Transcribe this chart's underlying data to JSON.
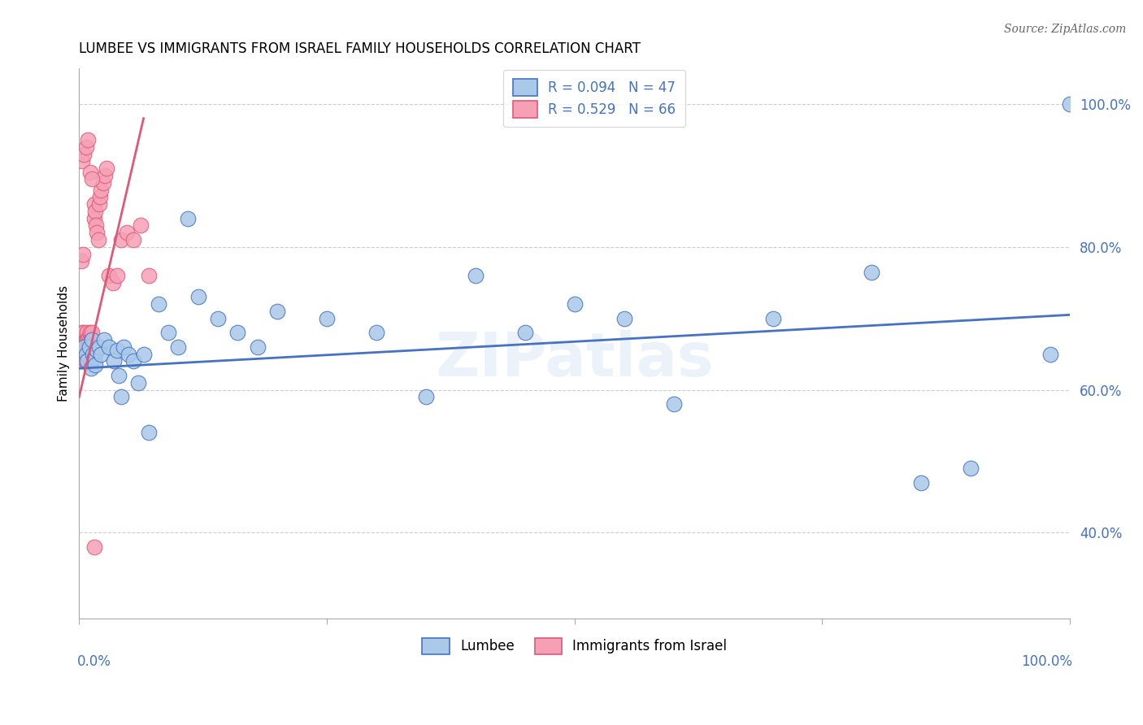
{
  "title": "LUMBEE VS IMMIGRANTS FROM ISRAEL FAMILY HOUSEHOLDS CORRELATION CHART",
  "source": "Source: ZipAtlas.com",
  "ylabel": "Family Households",
  "watermark": "ZIPatlas",
  "legend_r1": "R = 0.094",
  "legend_n1": "N = 47",
  "legend_r2": "R = 0.529",
  "legend_n2": "N = 66",
  "lumbee_color": "#aac8e8",
  "israel_color": "#f5a0b5",
  "lumbee_edge_color": "#4472c4",
  "israel_edge_color": "#e05878",
  "lumbee_line_color": "#4472c4",
  "israel_line_color": "#e05878",
  "text_color": "#4472c4",
  "lumbee_x": [
    0.005,
    0.007,
    0.008,
    0.01,
    0.012,
    0.013,
    0.014,
    0.015,
    0.016,
    0.018,
    0.02,
    0.022,
    0.025,
    0.03,
    0.035,
    0.038,
    0.04,
    0.042,
    0.045,
    0.05,
    0.055,
    0.06,
    0.065,
    0.07,
    0.08,
    0.09,
    0.1,
    0.11,
    0.12,
    0.14,
    0.16,
    0.18,
    0.2,
    0.25,
    0.3,
    0.35,
    0.4,
    0.45,
    0.5,
    0.55,
    0.6,
    0.7,
    0.8,
    0.85,
    0.9,
    0.98,
    1.0
  ],
  "lumbee_y": [
    0.66,
    0.65,
    0.64,
    0.66,
    0.63,
    0.67,
    0.65,
    0.645,
    0.635,
    0.655,
    0.66,
    0.65,
    0.67,
    0.66,
    0.64,
    0.655,
    0.62,
    0.59,
    0.66,
    0.65,
    0.64,
    0.61,
    0.65,
    0.54,
    0.72,
    0.68,
    0.66,
    0.84,
    0.73,
    0.7,
    0.68,
    0.66,
    0.71,
    0.7,
    0.68,
    0.59,
    0.76,
    0.68,
    0.72,
    0.7,
    0.58,
    0.7,
    0.765,
    0.47,
    0.49,
    0.65,
    1.0
  ],
  "israel_x": [
    0.001,
    0.001,
    0.002,
    0.002,
    0.002,
    0.003,
    0.003,
    0.003,
    0.004,
    0.004,
    0.004,
    0.005,
    0.005,
    0.005,
    0.006,
    0.006,
    0.006,
    0.007,
    0.007,
    0.007,
    0.008,
    0.008,
    0.008,
    0.008,
    0.009,
    0.009,
    0.009,
    0.01,
    0.01,
    0.01,
    0.011,
    0.011,
    0.012,
    0.012,
    0.013,
    0.013,
    0.014,
    0.015,
    0.015,
    0.016,
    0.017,
    0.018,
    0.019,
    0.02,
    0.021,
    0.022,
    0.024,
    0.026,
    0.028,
    0.03,
    0.034,
    0.038,
    0.042,
    0.048,
    0.055,
    0.062,
    0.07,
    0.003,
    0.005,
    0.007,
    0.009,
    0.011,
    0.013,
    0.002,
    0.004,
    0.015
  ],
  "israel_y": [
    0.66,
    0.645,
    0.67,
    0.65,
    0.64,
    0.655,
    0.68,
    0.66,
    0.65,
    0.67,
    0.645,
    0.68,
    0.66,
    0.65,
    0.67,
    0.65,
    0.64,
    0.67,
    0.66,
    0.65,
    0.68,
    0.67,
    0.655,
    0.64,
    0.665,
    0.67,
    0.655,
    0.67,
    0.66,
    0.65,
    0.68,
    0.66,
    0.67,
    0.65,
    0.66,
    0.68,
    0.66,
    0.84,
    0.86,
    0.85,
    0.83,
    0.82,
    0.81,
    0.86,
    0.87,
    0.88,
    0.89,
    0.9,
    0.91,
    0.76,
    0.75,
    0.76,
    0.81,
    0.82,
    0.81,
    0.83,
    0.76,
    0.92,
    0.93,
    0.94,
    0.95,
    0.905,
    0.895,
    0.78,
    0.79,
    0.38
  ],
  "xmin": 0.0,
  "xmax": 1.0,
  "ymin": 0.28,
  "ymax": 1.05,
  "yticks": [
    0.4,
    0.6,
    0.8,
    1.0
  ],
  "ytick_labels": [
    "40.0%",
    "60.0%",
    "80.0%",
    "100.0%"
  ],
  "blue_trend_x0": 0.0,
  "blue_trend_x1": 1.0,
  "blue_trend_y0": 0.63,
  "blue_trend_y1": 0.705,
  "pink_trend_x0": 0.0,
  "pink_trend_x1": 0.065,
  "pink_trend_y0": 0.59,
  "pink_trend_y1": 0.98
}
